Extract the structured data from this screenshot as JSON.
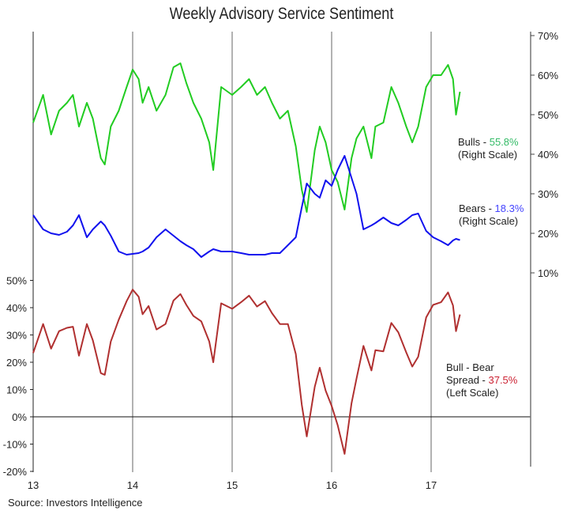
{
  "chart_data": {
    "type": "line",
    "title": "Weekly Advisory Service Sentiment",
    "source": "Source: Investors Intelligence",
    "x_ticks": [
      13,
      14,
      15,
      16,
      17
    ],
    "x_tick_labels": [
      "13",
      "14",
      "15",
      "16",
      "17"
    ],
    "xlim": [
      13,
      17.98
    ],
    "right_axis": {
      "ylim": [
        10,
        70
      ],
      "ticks": [
        10,
        20,
        30,
        40,
        50,
        60,
        70
      ],
      "tick_labels": [
        "10%",
        "20%",
        "30%",
        "40%",
        "50%",
        "60%",
        "70%"
      ]
    },
    "left_axis": {
      "ylim": [
        -20,
        50
      ],
      "ticks": [
        -20,
        -10,
        0,
        10,
        20,
        30,
        40,
        50
      ],
      "tick_labels": [
        "-20%",
        "-10%",
        "0%",
        "10%",
        "20%",
        "30%",
        "40%",
        "50%"
      ]
    },
    "x": [
      13.0,
      13.1,
      13.18,
      13.26,
      13.34,
      13.4,
      13.46,
      13.54,
      13.6,
      13.68,
      13.72,
      13.78,
      13.86,
      13.94,
      14.0,
      14.06,
      14.1,
      14.16,
      14.24,
      14.33,
      14.41,
      14.48,
      14.54,
      14.61,
      14.69,
      14.77,
      14.81,
      14.89,
      15.0,
      15.09,
      15.17,
      15.25,
      15.33,
      15.4,
      15.48,
      15.56,
      15.64,
      15.7,
      15.75,
      15.83,
      15.88,
      15.94,
      16.0,
      16.06,
      16.13,
      16.2,
      16.25,
      16.32,
      16.4,
      16.44,
      16.52,
      16.6,
      16.67,
      16.75,
      16.81,
      16.87,
      16.95,
      17.02,
      17.1,
      17.17,
      17.22,
      17.25,
      17.29
    ],
    "series": [
      {
        "name": "Bulls",
        "axis": "right",
        "color": "#22cc22",
        "label_prefix": "Bulls - ",
        "label_value": "55.8%",
        "label_note": "(Right Scale)",
        "label_color": "#33bb66",
        "values": [
          48,
          55,
          45,
          51,
          53,
          55,
          47,
          53,
          49,
          39,
          37.4,
          47,
          51,
          57,
          61.4,
          59,
          53,
          57,
          51,
          55,
          62,
          63,
          58,
          53,
          49,
          43,
          36,
          57,
          55,
          57,
          59,
          55,
          57,
          53,
          49,
          51,
          42,
          31,
          25.4,
          41,
          47,
          43,
          36,
          33,
          26,
          39,
          44,
          47,
          39,
          47,
          48,
          57,
          53,
          47,
          43,
          47,
          57,
          60,
          60,
          62.6,
          59,
          50,
          55.8
        ]
      },
      {
        "name": "Bears",
        "axis": "right",
        "color": "#1111ee",
        "label_prefix": "Bears - ",
        "label_value": "18.3%",
        "label_note": "(Right Scale)",
        "label_color": "#4444ff",
        "values": [
          24.6,
          21,
          20,
          19.6,
          20.4,
          22,
          24.6,
          19,
          21,
          23,
          22,
          19.4,
          15.4,
          14.6,
          14.8,
          15,
          15.4,
          16.4,
          19,
          21,
          19.4,
          18,
          17,
          16,
          14,
          15.4,
          16,
          15.4,
          15.4,
          15,
          14.6,
          14.6,
          14.6,
          15,
          15,
          17,
          19,
          26.6,
          32.6,
          30,
          29,
          33.4,
          32,
          36,
          39.6,
          34,
          30,
          21,
          22,
          22.6,
          24,
          22.6,
          22,
          23.4,
          24.6,
          25,
          20.6,
          19,
          18,
          17,
          18.2,
          18.6,
          18.3
        ]
      },
      {
        "name": "Bull - Bear Spread",
        "axis": "left",
        "color": "#b03030",
        "label_prefix": "Bull - Bear",
        "label_prefix2": "Spread - ",
        "label_value": "37.5%",
        "label_note": "(Left Scale)",
        "label_color": "#cc2233",
        "values": [
          23.4,
          34,
          25,
          31.4,
          32.6,
          33,
          22.4,
          34,
          28,
          16,
          15.4,
          27.6,
          35.6,
          42.4,
          46.6,
          44,
          37.6,
          40.6,
          32,
          34,
          42.6,
          45,
          41,
          37,
          35,
          27.6,
          20,
          41.6,
          39.6,
          42,
          44.4,
          40.4,
          42.4,
          38,
          34,
          34,
          23,
          4.4,
          -7.2,
          11,
          18,
          9.6,
          4,
          -3,
          -13.6,
          5,
          14,
          26,
          17,
          24.4,
          24,
          34.4,
          31,
          23.6,
          18.4,
          22,
          36.4,
          41,
          42,
          45.6,
          40.8,
          31.4,
          37.5
        ]
      }
    ]
  }
}
